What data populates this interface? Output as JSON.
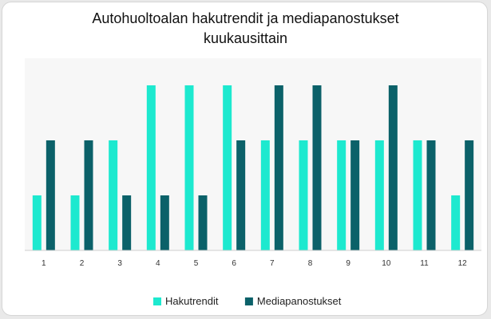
{
  "chart_data": {
    "type": "bar",
    "title": "Autohuoltoalan hakutrendit ja mediapanostukset\nkuukausittain",
    "xlabel": "",
    "ylabel": "",
    "categories": [
      "1",
      "2",
      "3",
      "4",
      "5",
      "6",
      "7",
      "8",
      "9",
      "10",
      "11",
      "12"
    ],
    "series": [
      {
        "name": "Hakutrendit",
        "color": "#1de9cf",
        "values": [
          1,
          1,
          2,
          3,
          3,
          3,
          2,
          2,
          2,
          2,
          2,
          1
        ]
      },
      {
        "name": "Mediapanostukset",
        "color": "#0b6169",
        "values": [
          2,
          2,
          1,
          1,
          1,
          2,
          3,
          3,
          2,
          3,
          2,
          2
        ]
      }
    ],
    "ylim": [
      0,
      3
    ],
    "grid": false,
    "legend": "bottom"
  }
}
